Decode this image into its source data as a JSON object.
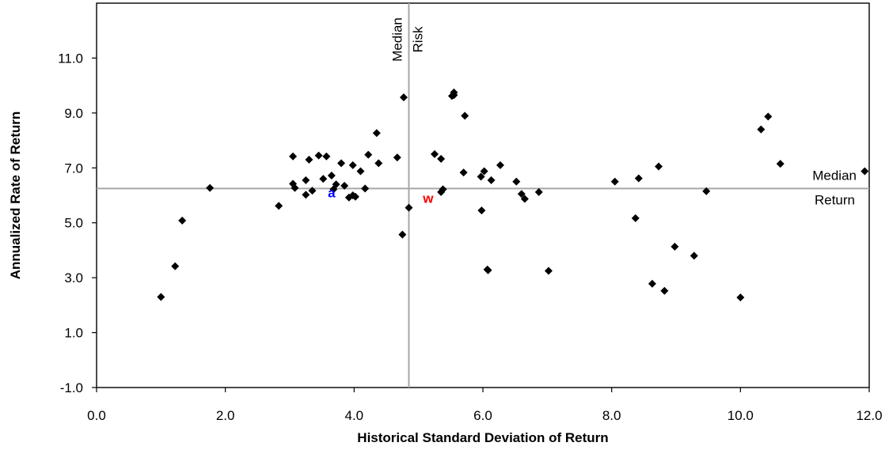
{
  "chart_data": {
    "type": "scatter",
    "title": "",
    "xlabel": "Historical Standard Deviation of Return",
    "ylabel": "Annualized Rate of Return",
    "xlim": [
      0.0,
      12.0
    ],
    "ylim": [
      -1.0,
      13.0
    ],
    "x_ticks": [
      "0.0",
      "2.0",
      "4.0",
      "6.0",
      "8.0",
      "10.0",
      "12.0"
    ],
    "x_tick_values": [
      0,
      2,
      4,
      6,
      8,
      10,
      12
    ],
    "y_ticks": [
      "-1.0",
      "1.0",
      "3.0",
      "5.0",
      "7.0",
      "9.0",
      "11.0"
    ],
    "y_tick_values": [
      -1,
      1,
      3,
      5,
      7,
      9,
      11
    ],
    "grid": false,
    "point_color": "#000000",
    "median_line_color": "#a6a6a6",
    "median_risk": {
      "value": 4.85,
      "label_line1": "Median",
      "label_line2": "Risk"
    },
    "median_return": {
      "value": 6.25,
      "label_line1": "Median",
      "label_line2": "Return"
    },
    "highlights": [
      {
        "label": "a",
        "x": 3.65,
        "y": 6.1,
        "color": "#0000ff"
      },
      {
        "label": "w",
        "x": 5.15,
        "y": 5.9,
        "color": "#ff0000"
      }
    ],
    "points": [
      [
        1.0,
        2.3
      ],
      [
        1.22,
        3.42
      ],
      [
        1.33,
        5.08
      ],
      [
        1.76,
        6.27
      ],
      [
        2.83,
        5.62
      ],
      [
        3.05,
        7.42
      ],
      [
        3.05,
        6.42
      ],
      [
        3.08,
        6.27
      ],
      [
        3.25,
        6.55
      ],
      [
        3.25,
        6.02
      ],
      [
        3.3,
        7.3
      ],
      [
        3.35,
        6.17
      ],
      [
        3.45,
        7.45
      ],
      [
        3.52,
        6.6
      ],
      [
        3.57,
        7.42
      ],
      [
        3.65,
        6.72
      ],
      [
        3.68,
        6.22
      ],
      [
        3.72,
        6.4
      ],
      [
        3.8,
        7.17
      ],
      [
        3.85,
        6.35
      ],
      [
        3.92,
        5.92
      ],
      [
        3.98,
        7.1
      ],
      [
        3.98,
        6.0
      ],
      [
        4.02,
        5.95
      ],
      [
        4.1,
        6.88
      ],
      [
        4.17,
        6.25
      ],
      [
        4.22,
        7.48
      ],
      [
        4.35,
        8.27
      ],
      [
        4.38,
        7.17
      ],
      [
        4.67,
        7.38
      ],
      [
        4.75,
        4.57
      ],
      [
        4.77,
        9.57
      ],
      [
        4.85,
        5.55
      ],
      [
        5.25,
        7.5
      ],
      [
        5.35,
        7.33
      ],
      [
        5.35,
        6.12
      ],
      [
        5.38,
        6.22
      ],
      [
        5.52,
        9.62
      ],
      [
        5.55,
        9.75
      ],
      [
        5.55,
        9.65
      ],
      [
        5.72,
        8.9
      ],
      [
        5.7,
        6.83
      ],
      [
        5.97,
        6.68
      ],
      [
        5.98,
        5.45
      ],
      [
        6.02,
        6.88
      ],
      [
        6.07,
        3.3
      ],
      [
        6.08,
        3.27
      ],
      [
        6.13,
        6.55
      ],
      [
        6.27,
        7.1
      ],
      [
        6.52,
        6.5
      ],
      [
        6.6,
        6.05
      ],
      [
        6.65,
        5.87
      ],
      [
        6.87,
        6.12
      ],
      [
        7.02,
        3.25
      ],
      [
        8.05,
        6.5
      ],
      [
        8.37,
        5.17
      ],
      [
        8.42,
        6.62
      ],
      [
        8.63,
        2.78
      ],
      [
        8.73,
        7.05
      ],
      [
        8.82,
        2.52
      ],
      [
        8.98,
        4.13
      ],
      [
        9.28,
        3.8
      ],
      [
        9.47,
        6.15
      ],
      [
        10.0,
        2.28
      ],
      [
        10.32,
        8.4
      ],
      [
        10.43,
        8.87
      ],
      [
        10.62,
        7.15
      ],
      [
        11.93,
        6.88
      ]
    ]
  }
}
